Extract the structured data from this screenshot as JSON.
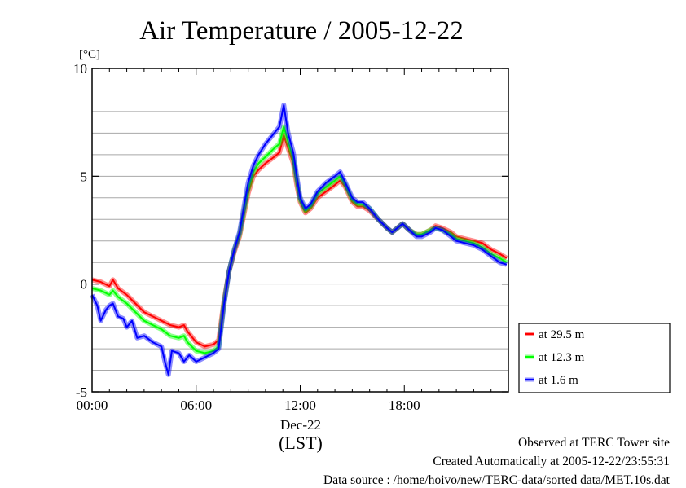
{
  "chart_data": {
    "type": "line",
    "title": "Air Temperature / 2005-12-22",
    "ylabel": "[°C]",
    "xlabel": "(LST)",
    "date_label": "Dec-22",
    "ylim": [
      -5,
      10
    ],
    "yticks": [
      -5,
      0,
      5,
      10
    ],
    "xlim_hours": [
      0,
      24
    ],
    "xticks": [
      {
        "hour": 0,
        "label": "00:00"
      },
      {
        "hour": 6,
        "label": "06:00"
      },
      {
        "hour": 12,
        "label": "12:00"
      },
      {
        "hour": 18,
        "label": "18:00"
      }
    ],
    "grid": true,
    "legend_position": "right-bottom",
    "series": [
      {
        "name": "at 29.5 m",
        "color": "#ff0000",
        "points": [
          [
            0,
            0.2
          ],
          [
            0.5,
            0.1
          ],
          [
            1,
            -0.1
          ],
          [
            1.2,
            0.2
          ],
          [
            1.5,
            -0.2
          ],
          [
            2,
            -0.5
          ],
          [
            2.5,
            -0.9
          ],
          [
            3,
            -1.3
          ],
          [
            3.5,
            -1.5
          ],
          [
            4,
            -1.7
          ],
          [
            4.5,
            -1.9
          ],
          [
            5,
            -2.0
          ],
          [
            5.3,
            -1.9
          ],
          [
            5.5,
            -2.2
          ],
          [
            6,
            -2.7
          ],
          [
            6.5,
            -2.9
          ],
          [
            7,
            -2.8
          ],
          [
            7.3,
            -2.6
          ],
          [
            7.6,
            -0.8
          ],
          [
            7.9,
            0.6
          ],
          [
            8.2,
            1.5
          ],
          [
            8.5,
            2.2
          ],
          [
            9,
            4.2
          ],
          [
            9.3,
            5.0
          ],
          [
            9.6,
            5.3
          ],
          [
            10,
            5.6
          ],
          [
            10.5,
            5.9
          ],
          [
            10.8,
            6.1
          ],
          [
            11.05,
            6.9
          ],
          [
            11.3,
            6.3
          ],
          [
            11.6,
            5.6
          ],
          [
            11.8,
            4.6
          ],
          [
            12,
            3.8
          ],
          [
            12.3,
            3.3
          ],
          [
            12.6,
            3.5
          ],
          [
            13,
            4.0
          ],
          [
            13.5,
            4.3
          ],
          [
            14,
            4.6
          ],
          [
            14.3,
            4.8
          ],
          [
            14.6,
            4.5
          ],
          [
            15,
            3.8
          ],
          [
            15.3,
            3.6
          ],
          [
            15.6,
            3.6
          ],
          [
            16,
            3.4
          ],
          [
            16.5,
            3.0
          ],
          [
            17,
            2.6
          ],
          [
            17.3,
            2.4
          ],
          [
            17.6,
            2.6
          ],
          [
            17.9,
            2.8
          ],
          [
            18.3,
            2.5
          ],
          [
            18.7,
            2.3
          ],
          [
            19,
            2.3
          ],
          [
            19.5,
            2.5
          ],
          [
            19.8,
            2.7
          ],
          [
            20.2,
            2.6
          ],
          [
            20.7,
            2.4
          ],
          [
            21,
            2.2
          ],
          [
            21.5,
            2.1
          ],
          [
            22,
            2.0
          ],
          [
            22.5,
            1.9
          ],
          [
            23,
            1.6
          ],
          [
            23.5,
            1.4
          ],
          [
            23.9,
            1.2
          ]
        ]
      },
      {
        "name": "at 12.3 m",
        "color": "#00ff00",
        "points": [
          [
            0,
            -0.2
          ],
          [
            0.5,
            -0.3
          ],
          [
            1,
            -0.5
          ],
          [
            1.2,
            -0.3
          ],
          [
            1.5,
            -0.6
          ],
          [
            2,
            -0.9
          ],
          [
            2.5,
            -1.3
          ],
          [
            3,
            -1.7
          ],
          [
            3.5,
            -1.9
          ],
          [
            4,
            -2.1
          ],
          [
            4.5,
            -2.4
          ],
          [
            5,
            -2.5
          ],
          [
            5.3,
            -2.4
          ],
          [
            5.5,
            -2.7
          ],
          [
            6,
            -3.1
          ],
          [
            6.5,
            -3.2
          ],
          [
            7,
            -3.1
          ],
          [
            7.3,
            -2.9
          ],
          [
            7.6,
            -0.9
          ],
          [
            7.9,
            0.6
          ],
          [
            8.2,
            1.6
          ],
          [
            8.5,
            2.3
          ],
          [
            9,
            4.4
          ],
          [
            9.3,
            5.2
          ],
          [
            9.6,
            5.6
          ],
          [
            10,
            5.9
          ],
          [
            10.5,
            6.3
          ],
          [
            10.8,
            6.5
          ],
          [
            11.05,
            7.3
          ],
          [
            11.3,
            6.6
          ],
          [
            11.6,
            5.8
          ],
          [
            11.8,
            4.8
          ],
          [
            12,
            3.9
          ],
          [
            12.3,
            3.4
          ],
          [
            12.6,
            3.6
          ],
          [
            13,
            4.2
          ],
          [
            13.5,
            4.5
          ],
          [
            14,
            4.8
          ],
          [
            14.3,
            5.0
          ],
          [
            14.6,
            4.6
          ],
          [
            15,
            3.9
          ],
          [
            15.3,
            3.7
          ],
          [
            15.6,
            3.7
          ],
          [
            16,
            3.5
          ],
          [
            16.5,
            3.0
          ],
          [
            17,
            2.6
          ],
          [
            17.3,
            2.4
          ],
          [
            17.6,
            2.6
          ],
          [
            17.9,
            2.8
          ],
          [
            18.3,
            2.5
          ],
          [
            18.7,
            2.3
          ],
          [
            19,
            2.3
          ],
          [
            19.5,
            2.5
          ],
          [
            19.8,
            2.6
          ],
          [
            20.2,
            2.5
          ],
          [
            20.7,
            2.3
          ],
          [
            21,
            2.1
          ],
          [
            21.5,
            2.0
          ],
          [
            22,
            1.9
          ],
          [
            22.5,
            1.7
          ],
          [
            23,
            1.4
          ],
          [
            23.5,
            1.2
          ],
          [
            23.9,
            1.0
          ]
        ]
      },
      {
        "name": "at 1.6 m",
        "color": "#0000ff",
        "points": [
          [
            0,
            -0.5
          ],
          [
            0.3,
            -1.0
          ],
          [
            0.5,
            -1.7
          ],
          [
            0.8,
            -1.2
          ],
          [
            1,
            -1.0
          ],
          [
            1.2,
            -0.9
          ],
          [
            1.5,
            -1.5
          ],
          [
            1.8,
            -1.6
          ],
          [
            2,
            -2.0
          ],
          [
            2.3,
            -1.7
          ],
          [
            2.6,
            -2.5
          ],
          [
            3,
            -2.4
          ],
          [
            3.5,
            -2.7
          ],
          [
            4,
            -2.9
          ],
          [
            4.2,
            -3.6
          ],
          [
            4.4,
            -4.2
          ],
          [
            4.6,
            -3.1
          ],
          [
            5,
            -3.2
          ],
          [
            5.3,
            -3.6
          ],
          [
            5.6,
            -3.3
          ],
          [
            6,
            -3.6
          ],
          [
            6.5,
            -3.4
          ],
          [
            7,
            -3.2
          ],
          [
            7.3,
            -3.0
          ],
          [
            7.6,
            -1.0
          ],
          [
            7.9,
            0.6
          ],
          [
            8.2,
            1.6
          ],
          [
            8.5,
            2.4
          ],
          [
            9,
            4.7
          ],
          [
            9.3,
            5.5
          ],
          [
            9.6,
            6.0
          ],
          [
            10,
            6.5
          ],
          [
            10.5,
            7.0
          ],
          [
            10.8,
            7.3
          ],
          [
            11.05,
            8.3
          ],
          [
            11.3,
            7.0
          ],
          [
            11.6,
            6.1
          ],
          [
            11.8,
            5.0
          ],
          [
            12,
            4.0
          ],
          [
            12.3,
            3.5
          ],
          [
            12.6,
            3.7
          ],
          [
            13,
            4.3
          ],
          [
            13.5,
            4.7
          ],
          [
            14,
            5.0
          ],
          [
            14.3,
            5.2
          ],
          [
            14.6,
            4.7
          ],
          [
            15,
            4.0
          ],
          [
            15.3,
            3.8
          ],
          [
            15.6,
            3.8
          ],
          [
            16,
            3.5
          ],
          [
            16.5,
            3.0
          ],
          [
            17,
            2.6
          ],
          [
            17.3,
            2.4
          ],
          [
            17.6,
            2.6
          ],
          [
            17.9,
            2.8
          ],
          [
            18.3,
            2.5
          ],
          [
            18.7,
            2.2
          ],
          [
            19,
            2.2
          ],
          [
            19.5,
            2.4
          ],
          [
            19.8,
            2.6
          ],
          [
            20.2,
            2.5
          ],
          [
            20.7,
            2.2
          ],
          [
            21,
            2.0
          ],
          [
            21.5,
            1.9
          ],
          [
            22,
            1.8
          ],
          [
            22.5,
            1.6
          ],
          [
            23,
            1.3
          ],
          [
            23.5,
            1.0
          ],
          [
            23.9,
            0.9
          ]
        ]
      }
    ]
  },
  "footer": {
    "site": "Observed at TERC Tower site",
    "created": "Created Automatically at 2005-12-22/23:55:31",
    "source": "Data source : /home/hoivo/new/TERC-data/sorted  data/MET.10s.dat"
  }
}
